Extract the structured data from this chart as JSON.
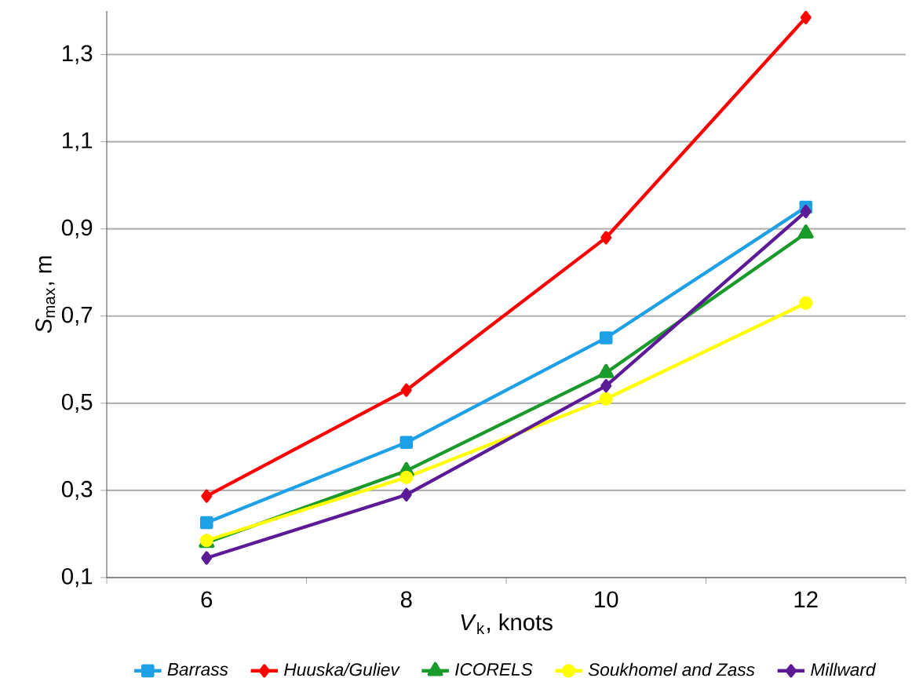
{
  "chart_data": {
    "type": "line",
    "xlabel": "*V*$_{k}$, knots",
    "ylabel": "*S*$_{max}$, m",
    "categories": [
      "6",
      "8",
      "10",
      "12"
    ],
    "series": [
      {
        "name": "Barrass",
        "color": "#1ea0e6",
        "marker": "square",
        "values": [
          0.226,
          0.41,
          0.65,
          0.95
        ]
      },
      {
        "name": "Huuska/Guliev",
        "color": "#ff0000",
        "marker": "diamond",
        "values": [
          0.287,
          0.53,
          0.88,
          1.385
        ]
      },
      {
        "name": "ICORELS",
        "color": "#1a9a2a",
        "marker": "triangle",
        "values": [
          0.18,
          0.345,
          0.57,
          0.89
        ]
      },
      {
        "name": "Soukhomel and Zass",
        "color": "#ffff00",
        "marker": "circle",
        "values": [
          0.185,
          0.33,
          0.51,
          0.73
        ]
      },
      {
        "name": "Millward",
        "color": "#5c1a96",
        "marker": "diamond",
        "values": [
          0.145,
          0.29,
          0.54,
          0.94
        ]
      }
    ],
    "ylim": [
      0.1,
      1.4
    ],
    "yticks": [
      {
        "value": 0.1,
        "label": "0,1"
      },
      {
        "value": 0.3,
        "label": "0,3"
      },
      {
        "value": 0.5,
        "label": "0,5"
      },
      {
        "value": 0.7,
        "label": "0,7"
      },
      {
        "value": 0.9,
        "label": "0,9"
      },
      {
        "value": 1.1,
        "label": "1,1"
      },
      {
        "value": 1.3,
        "label": "1,3"
      }
    ],
    "grid": "y",
    "legend": "bottom",
    "line_style": "solid"
  }
}
